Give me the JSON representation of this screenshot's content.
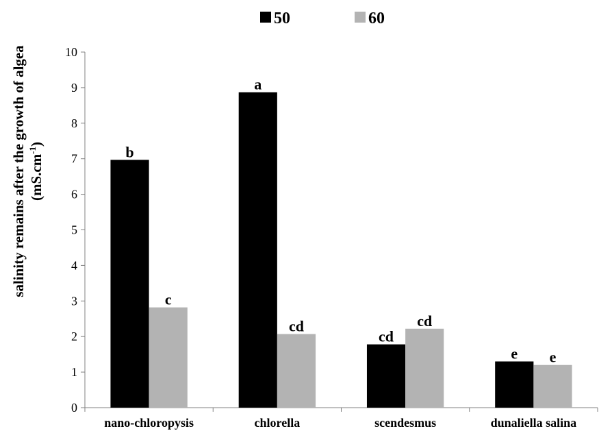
{
  "chart_data": {
    "type": "bar",
    "title": "",
    "categories": [
      "nano-chloropysis",
      "chlorella",
      "scendesmus",
      "dunaliella salina"
    ],
    "series": [
      {
        "name": "50",
        "color": "#000000",
        "values": [
          6.97,
          8.87,
          1.78,
          1.3
        ],
        "labels": [
          "b",
          "a",
          "cd",
          "e"
        ]
      },
      {
        "name": "60",
        "color": "#b3b3b3",
        "values": [
          2.82,
          2.07,
          2.22,
          1.2
        ],
        "labels": [
          "c",
          "cd",
          "cd",
          "e"
        ]
      }
    ],
    "xlabel": "",
    "ylabel": {
      "line1": "salinity remains after the growth of algea",
      "line2_prefix": "(mS.cm",
      "line2_sup": "-1",
      "line2_suffix": ")"
    },
    "ylim": [
      0,
      10
    ],
    "yticks": [
      "0",
      "1",
      "2",
      "3",
      "4",
      "5",
      "6",
      "7",
      "8",
      "9",
      "10"
    ],
    "grid": false,
    "legend_position": "top-center"
  }
}
